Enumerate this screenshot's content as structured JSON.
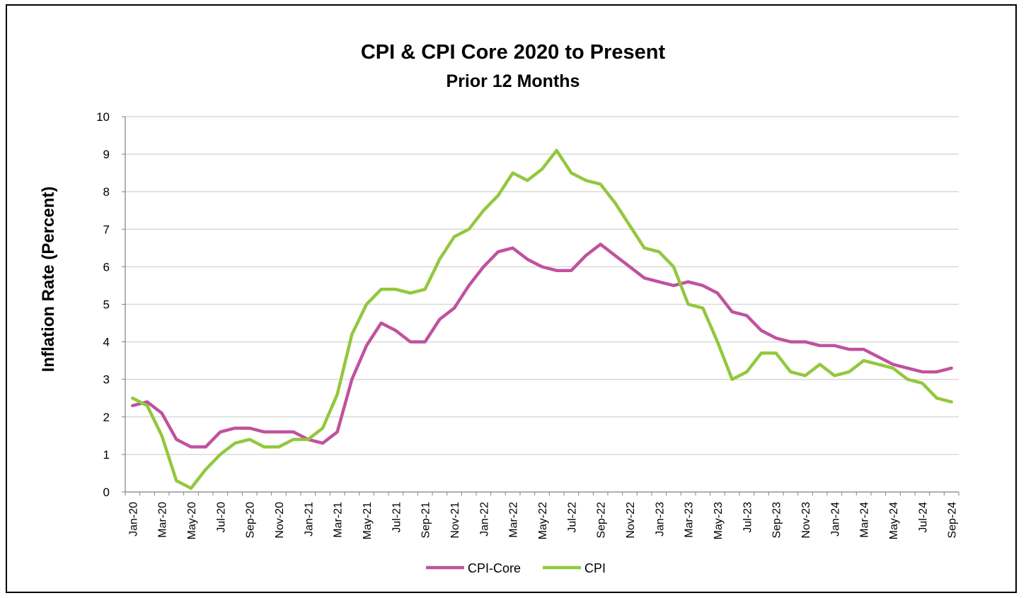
{
  "chart_data": {
    "type": "line",
    "title": "CPI & CPI Core  2020 to Present",
    "subtitle": "Prior 12 Months",
    "xlabel": "",
    "ylabel": "Inflation Rate (Percent)",
    "ylim": [
      0,
      10
    ],
    "yticks": [
      "0",
      "1",
      "2",
      "3",
      "4",
      "5",
      "6",
      "7",
      "8",
      "9",
      "10"
    ],
    "grid": "horizontal",
    "legend_position": "bottom",
    "x": [
      "Jan-20",
      "Feb-20",
      "Mar-20",
      "Apr-20",
      "May-20",
      "Jun-20",
      "Jul-20",
      "Aug-20",
      "Sep-20",
      "Oct-20",
      "Nov-20",
      "Dec-20",
      "Jan-21",
      "Feb-21",
      "Mar-21",
      "Apr-21",
      "May-21",
      "Jun-21",
      "Jul-21",
      "Aug-21",
      "Sep-21",
      "Oct-21",
      "Nov-21",
      "Dec-21",
      "Jan-22",
      "Feb-22",
      "Mar-22",
      "Apr-22",
      "May-22",
      "Jun-22",
      "Jul-22",
      "Aug-22",
      "Sep-22",
      "Oct-22",
      "Nov-22",
      "Dec-22",
      "Jan-23",
      "Feb-23",
      "Mar-23",
      "Apr-23",
      "May-23",
      "Jun-23",
      "Jul-23",
      "Aug-23",
      "Sep-23",
      "Oct-23",
      "Nov-23",
      "Dec-23",
      "Jan-24",
      "Feb-24",
      "Mar-24",
      "Apr-24",
      "May-24",
      "Jun-24",
      "Jul-24",
      "Aug-24",
      "Sep-24"
    ],
    "xtick_labels": [
      "Jan-20",
      "Mar-20",
      "May-20",
      "Jul-20",
      "Sep-20",
      "Nov-20",
      "Jan-21",
      "Mar-21",
      "May-21",
      "Jul-21",
      "Sep-21",
      "Nov-21",
      "Jan-22",
      "Mar-22",
      "May-22",
      "Jul-22",
      "Sep-22",
      "Nov-22",
      "Jan-23",
      "Mar-23",
      "May-23",
      "Jul-23",
      "Sep-23",
      "Nov-23",
      "Jan-24",
      "Mar-24",
      "May-24",
      "Jul-24",
      "Sep-24"
    ],
    "series": [
      {
        "name": "CPI-Core",
        "color": "#c0529e",
        "values": [
          2.3,
          2.4,
          2.1,
          1.4,
          1.2,
          1.2,
          1.6,
          1.7,
          1.7,
          1.6,
          1.6,
          1.6,
          1.4,
          1.3,
          1.6,
          3.0,
          3.9,
          4.5,
          4.3,
          4.0,
          4.0,
          4.6,
          4.9,
          5.5,
          6.0,
          6.4,
          6.5,
          6.2,
          6.0,
          5.9,
          5.9,
          6.3,
          6.6,
          6.3,
          6.0,
          5.7,
          5.6,
          5.5,
          5.6,
          5.5,
          5.3,
          4.8,
          4.7,
          4.3,
          4.1,
          4.0,
          4.0,
          3.9,
          3.9,
          3.8,
          3.8,
          3.6,
          3.4,
          3.3,
          3.2,
          3.2,
          3.3
        ]
      },
      {
        "name": "CPI",
        "color": "#92c83e",
        "values": [
          2.5,
          2.3,
          1.5,
          0.3,
          0.1,
          0.6,
          1.0,
          1.3,
          1.4,
          1.2,
          1.2,
          1.4,
          1.4,
          1.7,
          2.6,
          4.2,
          5.0,
          5.4,
          5.4,
          5.3,
          5.4,
          6.2,
          6.8,
          7.0,
          7.5,
          7.9,
          8.5,
          8.3,
          8.6,
          9.1,
          8.5,
          8.3,
          8.2,
          7.7,
          7.1,
          6.5,
          6.4,
          6.0,
          5.0,
          4.9,
          4.0,
          3.0,
          3.2,
          3.7,
          3.7,
          3.2,
          3.1,
          3.4,
          3.1,
          3.2,
          3.5,
          3.4,
          3.3,
          3.0,
          2.9,
          2.5,
          2.4
        ]
      }
    ]
  }
}
